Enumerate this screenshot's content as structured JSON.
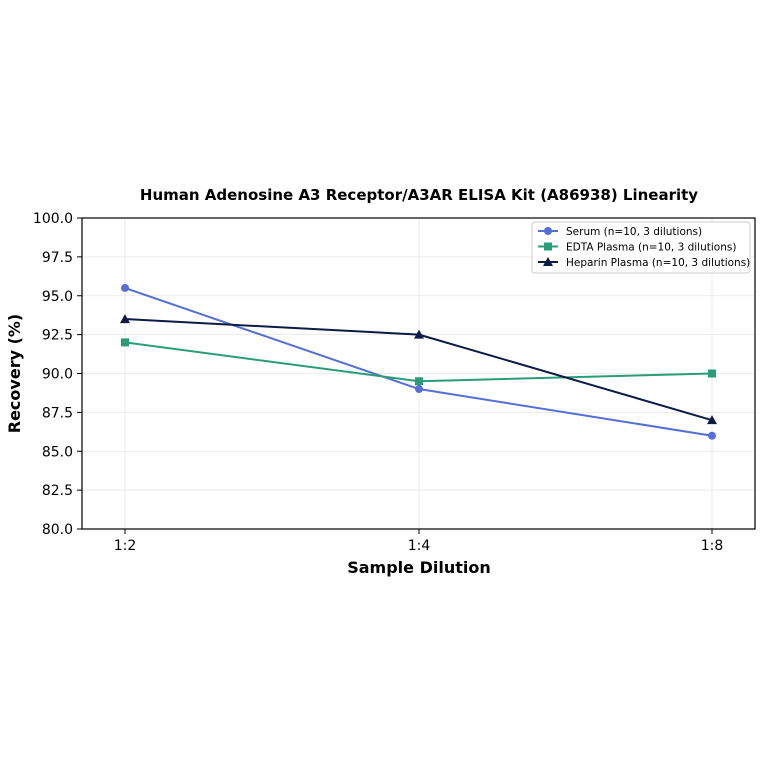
{
  "chart_data": {
    "type": "line",
    "title": "Human Adenosine A3 Receptor/A3AR ELISA Kit (A86938) Linearity",
    "xlabel": "Sample Dilution",
    "ylabel": "Recovery (%)",
    "categories": [
      "1:2",
      "1:4",
      "1:8"
    ],
    "ylim": [
      80.0,
      100.0
    ],
    "yticks": [
      "80.0",
      "82.5",
      "85.0",
      "87.5",
      "90.0",
      "92.5",
      "95.0",
      "97.5",
      "100.0"
    ],
    "grid": true,
    "legend_position": "top-right",
    "series": [
      {
        "name": "Serum (n=10, 3 dilutions)",
        "values": [
          95.5,
          89.0,
          86.0
        ],
        "color": "#5470d6",
        "marker": "circle"
      },
      {
        "name": "EDTA Plasma (n=10, 3 dilutions)",
        "values": [
          92.0,
          89.5,
          90.0
        ],
        "color": "#2a9d78",
        "marker": "square"
      },
      {
        "name": "Heparin Plasma (n=10, 3 dilutions)",
        "values": [
          93.5,
          92.5,
          87.0
        ],
        "color": "#0d1b45",
        "marker": "triangle"
      }
    ]
  }
}
